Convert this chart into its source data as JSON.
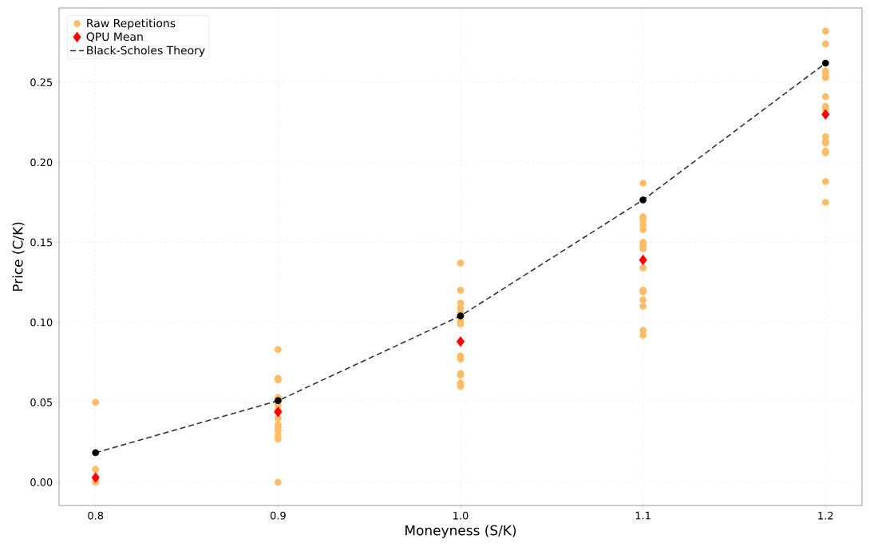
{
  "chart_data": {
    "type": "scatter",
    "xlabel": "Moneyness (S/K)",
    "ylabel": "Price (C/K)",
    "xlim": [
      0.78,
      1.22
    ],
    "ylim": [
      -0.0145,
      0.2965
    ],
    "xticks": [
      0.8,
      0.9,
      {
        "value": 1.0,
        "label": "1.0"
      },
      1.1,
      1.2
    ],
    "yticks": [
      {
        "value": 0,
        "label": "0.00"
      },
      0.05,
      {
        "value": 0.1,
        "label": "0.10"
      },
      0.15,
      {
        "value": 0.2,
        "label": "0.20"
      },
      0.25
    ],
    "grid": true,
    "legend": "top left",
    "series": [
      {
        "name": "Raw Repetitions",
        "color": "#ffbb66",
        "marker": "circle",
        "x": [
          0.8,
          0.8,
          0.8,
          0.8,
          0.9,
          0.9,
          0.9,
          0.9,
          0.9,
          0.9,
          0.9,
          0.9,
          0.9,
          0.9,
          0.9,
          0.9,
          0.9,
          0.9,
          1.0,
          1.0,
          1.0,
          1.0,
          1.0,
          1.0,
          1.0,
          1.0,
          1.0,
          1.0,
          1.0,
          1.0,
          1.0,
          1.0,
          1.1,
          1.1,
          1.1,
          1.1,
          1.1,
          1.1,
          1.1,
          1.1,
          1.1,
          1.1,
          1.1,
          1.1,
          1.1,
          1.1,
          1.1,
          1.2,
          1.2,
          1.2,
          1.2,
          1.2,
          1.2,
          1.2,
          1.2,
          1.2,
          1.2,
          1.2,
          1.2,
          1.2,
          1.2,
          1.2
        ],
        "values": [
          0.05,
          0.008,
          0.001,
          0.0,
          0.083,
          0.065,
          0.064,
          0.053,
          0.052,
          0.048,
          0.045,
          0.04,
          0.036,
          0.034,
          0.032,
          0.029,
          0.027,
          0.0,
          0.137,
          0.12,
          0.112,
          0.109,
          0.106,
          0.101,
          0.099,
          0.079,
          0.077,
          0.068,
          0.067,
          0.062,
          0.061,
          0.06,
          0.187,
          0.166,
          0.164,
          0.161,
          0.158,
          0.15,
          0.148,
          0.146,
          0.134,
          0.12,
          0.119,
          0.114,
          0.11,
          0.095,
          0.092,
          0.282,
          0.274,
          0.257,
          0.255,
          0.253,
          0.241,
          0.235,
          0.233,
          0.216,
          0.213,
          0.212,
          0.207,
          0.206,
          0.188,
          0.175
        ]
      },
      {
        "name": "QPU Mean",
        "color": "#ff0000",
        "marker": "diamond",
        "x": [
          0.8,
          0.9,
          1.0,
          1.1,
          1.2
        ],
        "values": [
          0.003,
          0.044,
          0.088,
          0.139,
          0.23
        ]
      },
      {
        "type": "line",
        "name": "Black-Scholes Theory",
        "color": "#333333",
        "marker": "circle",
        "line_style": "dashed",
        "x": [
          0.8,
          0.9,
          1.0,
          1.1,
          1.2
        ],
        "values": [
          0.0185,
          0.051,
          0.104,
          0.1765,
          0.262
        ]
      }
    ]
  }
}
